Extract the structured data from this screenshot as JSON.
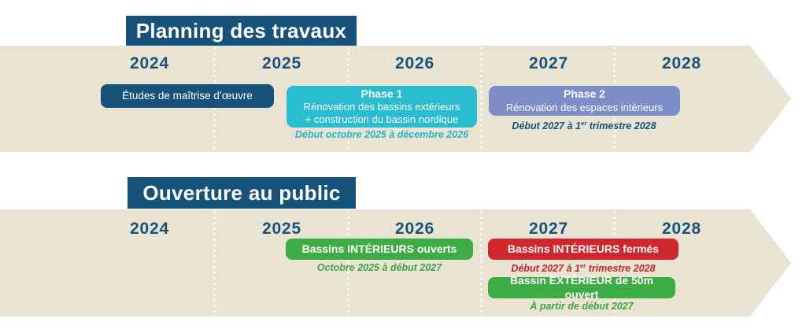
{
  "palette": {
    "navy": "#17527B",
    "beige": "#E9E3D2",
    "cyan": "#2ABCD0",
    "periwinkle": "#7C8EC7",
    "green": "#3EAC44",
    "red": "#D0262D",
    "text_on_pills": "#FFFFFF"
  },
  "timeline": {
    "years": [
      "2024",
      "2025",
      "2026",
      "2027",
      "2028"
    ]
  },
  "planning": {
    "title": "Planning des travaux",
    "etudes_label": "Études de maîtrise d’œuvre",
    "phase1": {
      "name": "Phase 1",
      "line1": "Rénovation des bassins extérieurs",
      "line2": "+ construction du bassin nordique",
      "caption": "Début octobre 2025 à décembre 2026"
    },
    "phase2": {
      "name": "Phase 2",
      "line1": "Rénovation des espaces intérieurs",
      "caption_pre": "Début 2027 à 1",
      "caption_sup": "er",
      "caption_post": " trimestre 2028"
    }
  },
  "ouverture": {
    "title": "Ouverture au public",
    "bassins_interieurs_ouverts": {
      "label": "Bassins INTÉRIEURS ouverts",
      "caption": "Octobre 2025 à début 2027"
    },
    "bassins_interieurs_fermes": {
      "label": "Bassins INTÉRIEURS fermés",
      "caption_pre": "Début 2027 à 1",
      "caption_sup": "er",
      "caption_post": " trimestre 2028"
    },
    "bassin_exterieur_ouvert": {
      "label": "Bassin EXTÉRIEUR de 50m ouvert",
      "caption": "À partir de début 2027"
    }
  }
}
